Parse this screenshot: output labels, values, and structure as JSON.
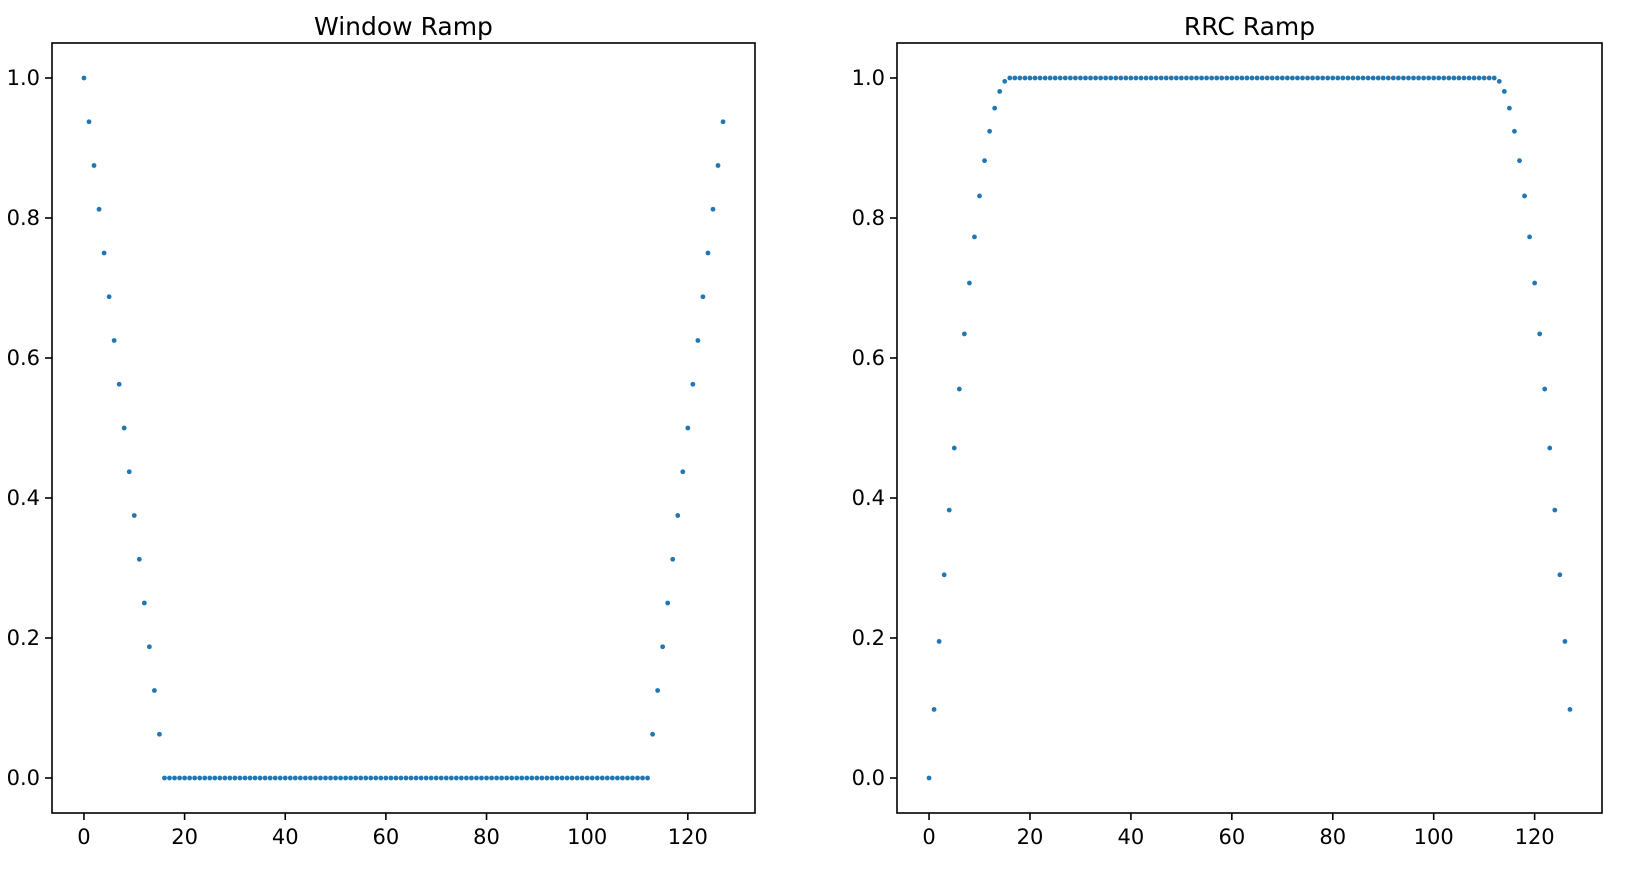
{
  "figure": {
    "background": "#ffffff",
    "marker_color": "#1f77b4",
    "axis_color": "#000000",
    "tick_label_color": "#000000"
  },
  "chart_data": [
    {
      "type": "scatter",
      "title": "Window Ramp",
      "xlabel": "",
      "ylabel": "",
      "grid": false,
      "legend": null,
      "xlim": [
        -6.35,
        133.35
      ],
      "ylim": [
        -0.05,
        1.05
      ],
      "xticks": [
        0,
        20,
        40,
        60,
        80,
        100,
        120
      ],
      "xtick_labels": [
        "0",
        "20",
        "40",
        "60",
        "80",
        "100",
        "120"
      ],
      "yticks": [
        0.0,
        0.2,
        0.4,
        0.6,
        0.8,
        1.0
      ],
      "ytick_labels": [
        "0.0",
        "0.2",
        "0.4",
        "0.6",
        "0.8",
        "1.0"
      ],
      "x": [
        0,
        1,
        2,
        3,
        4,
        5,
        6,
        7,
        8,
        9,
        10,
        11,
        12,
        13,
        14,
        15,
        16,
        17,
        18,
        19,
        20,
        21,
        22,
        23,
        24,
        25,
        26,
        27,
        28,
        29,
        30,
        31,
        32,
        33,
        34,
        35,
        36,
        37,
        38,
        39,
        40,
        41,
        42,
        43,
        44,
        45,
        46,
        47,
        48,
        49,
        50,
        51,
        52,
        53,
        54,
        55,
        56,
        57,
        58,
        59,
        60,
        61,
        62,
        63,
        64,
        65,
        66,
        67,
        68,
        69,
        70,
        71,
        72,
        73,
        74,
        75,
        76,
        77,
        78,
        79,
        80,
        81,
        82,
        83,
        84,
        85,
        86,
        87,
        88,
        89,
        90,
        91,
        92,
        93,
        94,
        95,
        96,
        97,
        98,
        99,
        100,
        101,
        102,
        103,
        104,
        105,
        106,
        107,
        108,
        109,
        110,
        111,
        112,
        113,
        114,
        115,
        116,
        117,
        118,
        119,
        120,
        121,
        122,
        123,
        124,
        125,
        126,
        127
      ],
      "y": [
        1.0,
        0.9375,
        0.875,
        0.8125,
        0.75,
        0.6875,
        0.625,
        0.5625,
        0.5,
        0.4375,
        0.375,
        0.3125,
        0.25,
        0.1875,
        0.125,
        0.0625,
        0,
        0,
        0,
        0,
        0,
        0,
        0,
        0,
        0,
        0,
        0,
        0,
        0,
        0,
        0,
        0,
        0,
        0,
        0,
        0,
        0,
        0,
        0,
        0,
        0,
        0,
        0,
        0,
        0,
        0,
        0,
        0,
        0,
        0,
        0,
        0,
        0,
        0,
        0,
        0,
        0,
        0,
        0,
        0,
        0,
        0,
        0,
        0,
        0,
        0,
        0,
        0,
        0,
        0,
        0,
        0,
        0,
        0,
        0,
        0,
        0,
        0,
        0,
        0,
        0,
        0,
        0,
        0,
        0,
        0,
        0,
        0,
        0,
        0,
        0,
        0,
        0,
        0,
        0,
        0,
        0,
        0,
        0,
        0,
        0,
        0,
        0,
        0,
        0,
        0,
        0,
        0,
        0,
        0,
        0,
        0,
        0,
        0.0625,
        0.125,
        0.1875,
        0.25,
        0.3125,
        0.375,
        0.4375,
        0.5,
        0.5625,
        0.625,
        0.6875,
        0.75,
        0.8125,
        0.875,
        0.9375
      ]
    },
    {
      "type": "scatter",
      "title": "RRC Ramp",
      "xlabel": "",
      "ylabel": "",
      "grid": false,
      "legend": null,
      "xlim": [
        -6.35,
        133.35
      ],
      "ylim": [
        -0.05,
        1.05
      ],
      "xticks": [
        0,
        20,
        40,
        60,
        80,
        100,
        120
      ],
      "xtick_labels": [
        "0",
        "20",
        "40",
        "60",
        "80",
        "100",
        "120"
      ],
      "yticks": [
        0.0,
        0.2,
        0.4,
        0.6,
        0.8,
        1.0
      ],
      "ytick_labels": [
        "0.0",
        "0.2",
        "0.4",
        "0.6",
        "0.8",
        "1.0"
      ],
      "x": [
        0,
        1,
        2,
        3,
        4,
        5,
        6,
        7,
        8,
        9,
        10,
        11,
        12,
        13,
        14,
        15,
        16,
        17,
        18,
        19,
        20,
        21,
        22,
        23,
        24,
        25,
        26,
        27,
        28,
        29,
        30,
        31,
        32,
        33,
        34,
        35,
        36,
        37,
        38,
        39,
        40,
        41,
        42,
        43,
        44,
        45,
        46,
        47,
        48,
        49,
        50,
        51,
        52,
        53,
        54,
        55,
        56,
        57,
        58,
        59,
        60,
        61,
        62,
        63,
        64,
        65,
        66,
        67,
        68,
        69,
        70,
        71,
        72,
        73,
        74,
        75,
        76,
        77,
        78,
        79,
        80,
        81,
        82,
        83,
        84,
        85,
        86,
        87,
        88,
        89,
        90,
        91,
        92,
        93,
        94,
        95,
        96,
        97,
        98,
        99,
        100,
        101,
        102,
        103,
        104,
        105,
        106,
        107,
        108,
        109,
        110,
        111,
        112,
        113,
        114,
        115,
        116,
        117,
        118,
        119,
        120,
        121,
        122,
        123,
        124,
        125,
        126,
        127
      ],
      "y": [
        0.0,
        0.098,
        0.1951,
        0.2903,
        0.3827,
        0.4714,
        0.5556,
        0.6344,
        0.7071,
        0.773,
        0.8315,
        0.8819,
        0.9239,
        0.9569,
        0.9808,
        0.9952,
        1,
        1,
        1,
        1,
        1,
        1,
        1,
        1,
        1,
        1,
        1,
        1,
        1,
        1,
        1,
        1,
        1,
        1,
        1,
        1,
        1,
        1,
        1,
        1,
        1,
        1,
        1,
        1,
        1,
        1,
        1,
        1,
        1,
        1,
        1,
        1,
        1,
        1,
        1,
        1,
        1,
        1,
        1,
        1,
        1,
        1,
        1,
        1,
        1,
        1,
        1,
        1,
        1,
        1,
        1,
        1,
        1,
        1,
        1,
        1,
        1,
        1,
        1,
        1,
        1,
        1,
        1,
        1,
        1,
        1,
        1,
        1,
        1,
        1,
        1,
        1,
        1,
        1,
        1,
        1,
        1,
        1,
        1,
        1,
        1,
        1,
        1,
        1,
        1,
        1,
        1,
        1,
        1,
        1,
        1,
        1,
        1,
        0.9952,
        0.9808,
        0.9569,
        0.9239,
        0.8819,
        0.8315,
        0.773,
        0.7071,
        0.6344,
        0.5556,
        0.4714,
        0.3827,
        0.2903,
        0.1951,
        0.098
      ]
    }
  ]
}
